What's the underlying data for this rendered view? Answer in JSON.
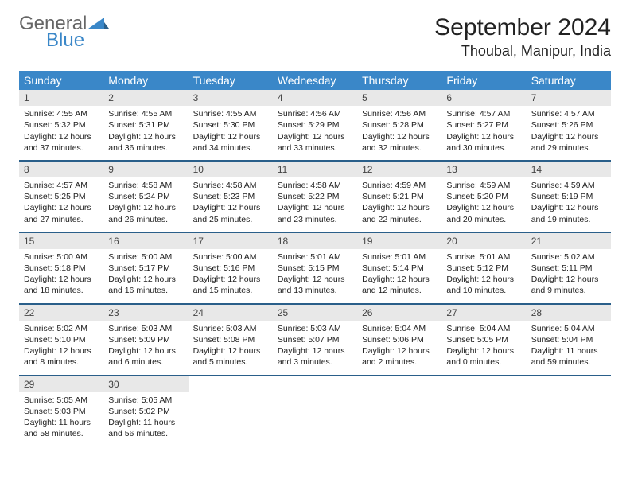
{
  "brand": {
    "text1": "General",
    "text2": "Blue",
    "color1": "#666666",
    "color2": "#3a87c8"
  },
  "title": "September 2024",
  "location": "Thoubal, Manipur, India",
  "colors": {
    "header_bg": "#3a87c8",
    "daynum_bg": "#e8e8e8",
    "week_divider": "#2a5f8a",
    "text": "#222222",
    "background": "#ffffff"
  },
  "days_of_week": [
    "Sunday",
    "Monday",
    "Tuesday",
    "Wednesday",
    "Thursday",
    "Friday",
    "Saturday"
  ],
  "weeks": [
    [
      {
        "n": "1",
        "sunrise": "Sunrise: 4:55 AM",
        "sunset": "Sunset: 5:32 PM",
        "daylight": "Daylight: 12 hours and 37 minutes."
      },
      {
        "n": "2",
        "sunrise": "Sunrise: 4:55 AM",
        "sunset": "Sunset: 5:31 PM",
        "daylight": "Daylight: 12 hours and 36 minutes."
      },
      {
        "n": "3",
        "sunrise": "Sunrise: 4:55 AM",
        "sunset": "Sunset: 5:30 PM",
        "daylight": "Daylight: 12 hours and 34 minutes."
      },
      {
        "n": "4",
        "sunrise": "Sunrise: 4:56 AM",
        "sunset": "Sunset: 5:29 PM",
        "daylight": "Daylight: 12 hours and 33 minutes."
      },
      {
        "n": "5",
        "sunrise": "Sunrise: 4:56 AM",
        "sunset": "Sunset: 5:28 PM",
        "daylight": "Daylight: 12 hours and 32 minutes."
      },
      {
        "n": "6",
        "sunrise": "Sunrise: 4:57 AM",
        "sunset": "Sunset: 5:27 PM",
        "daylight": "Daylight: 12 hours and 30 minutes."
      },
      {
        "n": "7",
        "sunrise": "Sunrise: 4:57 AM",
        "sunset": "Sunset: 5:26 PM",
        "daylight": "Daylight: 12 hours and 29 minutes."
      }
    ],
    [
      {
        "n": "8",
        "sunrise": "Sunrise: 4:57 AM",
        "sunset": "Sunset: 5:25 PM",
        "daylight": "Daylight: 12 hours and 27 minutes."
      },
      {
        "n": "9",
        "sunrise": "Sunrise: 4:58 AM",
        "sunset": "Sunset: 5:24 PM",
        "daylight": "Daylight: 12 hours and 26 minutes."
      },
      {
        "n": "10",
        "sunrise": "Sunrise: 4:58 AM",
        "sunset": "Sunset: 5:23 PM",
        "daylight": "Daylight: 12 hours and 25 minutes."
      },
      {
        "n": "11",
        "sunrise": "Sunrise: 4:58 AM",
        "sunset": "Sunset: 5:22 PM",
        "daylight": "Daylight: 12 hours and 23 minutes."
      },
      {
        "n": "12",
        "sunrise": "Sunrise: 4:59 AM",
        "sunset": "Sunset: 5:21 PM",
        "daylight": "Daylight: 12 hours and 22 minutes."
      },
      {
        "n": "13",
        "sunrise": "Sunrise: 4:59 AM",
        "sunset": "Sunset: 5:20 PM",
        "daylight": "Daylight: 12 hours and 20 minutes."
      },
      {
        "n": "14",
        "sunrise": "Sunrise: 4:59 AM",
        "sunset": "Sunset: 5:19 PM",
        "daylight": "Daylight: 12 hours and 19 minutes."
      }
    ],
    [
      {
        "n": "15",
        "sunrise": "Sunrise: 5:00 AM",
        "sunset": "Sunset: 5:18 PM",
        "daylight": "Daylight: 12 hours and 18 minutes."
      },
      {
        "n": "16",
        "sunrise": "Sunrise: 5:00 AM",
        "sunset": "Sunset: 5:17 PM",
        "daylight": "Daylight: 12 hours and 16 minutes."
      },
      {
        "n": "17",
        "sunrise": "Sunrise: 5:00 AM",
        "sunset": "Sunset: 5:16 PM",
        "daylight": "Daylight: 12 hours and 15 minutes."
      },
      {
        "n": "18",
        "sunrise": "Sunrise: 5:01 AM",
        "sunset": "Sunset: 5:15 PM",
        "daylight": "Daylight: 12 hours and 13 minutes."
      },
      {
        "n": "19",
        "sunrise": "Sunrise: 5:01 AM",
        "sunset": "Sunset: 5:14 PM",
        "daylight": "Daylight: 12 hours and 12 minutes."
      },
      {
        "n": "20",
        "sunrise": "Sunrise: 5:01 AM",
        "sunset": "Sunset: 5:12 PM",
        "daylight": "Daylight: 12 hours and 10 minutes."
      },
      {
        "n": "21",
        "sunrise": "Sunrise: 5:02 AM",
        "sunset": "Sunset: 5:11 PM",
        "daylight": "Daylight: 12 hours and 9 minutes."
      }
    ],
    [
      {
        "n": "22",
        "sunrise": "Sunrise: 5:02 AM",
        "sunset": "Sunset: 5:10 PM",
        "daylight": "Daylight: 12 hours and 8 minutes."
      },
      {
        "n": "23",
        "sunrise": "Sunrise: 5:03 AM",
        "sunset": "Sunset: 5:09 PM",
        "daylight": "Daylight: 12 hours and 6 minutes."
      },
      {
        "n": "24",
        "sunrise": "Sunrise: 5:03 AM",
        "sunset": "Sunset: 5:08 PM",
        "daylight": "Daylight: 12 hours and 5 minutes."
      },
      {
        "n": "25",
        "sunrise": "Sunrise: 5:03 AM",
        "sunset": "Sunset: 5:07 PM",
        "daylight": "Daylight: 12 hours and 3 minutes."
      },
      {
        "n": "26",
        "sunrise": "Sunrise: 5:04 AM",
        "sunset": "Sunset: 5:06 PM",
        "daylight": "Daylight: 12 hours and 2 minutes."
      },
      {
        "n": "27",
        "sunrise": "Sunrise: 5:04 AM",
        "sunset": "Sunset: 5:05 PM",
        "daylight": "Daylight: 12 hours and 0 minutes."
      },
      {
        "n": "28",
        "sunrise": "Sunrise: 5:04 AM",
        "sunset": "Sunset: 5:04 PM",
        "daylight": "Daylight: 11 hours and 59 minutes."
      }
    ],
    [
      {
        "n": "29",
        "sunrise": "Sunrise: 5:05 AM",
        "sunset": "Sunset: 5:03 PM",
        "daylight": "Daylight: 11 hours and 58 minutes."
      },
      {
        "n": "30",
        "sunrise": "Sunrise: 5:05 AM",
        "sunset": "Sunset: 5:02 PM",
        "daylight": "Daylight: 11 hours and 56 minutes."
      },
      {
        "empty": true
      },
      {
        "empty": true
      },
      {
        "empty": true
      },
      {
        "empty": true
      },
      {
        "empty": true
      }
    ]
  ]
}
